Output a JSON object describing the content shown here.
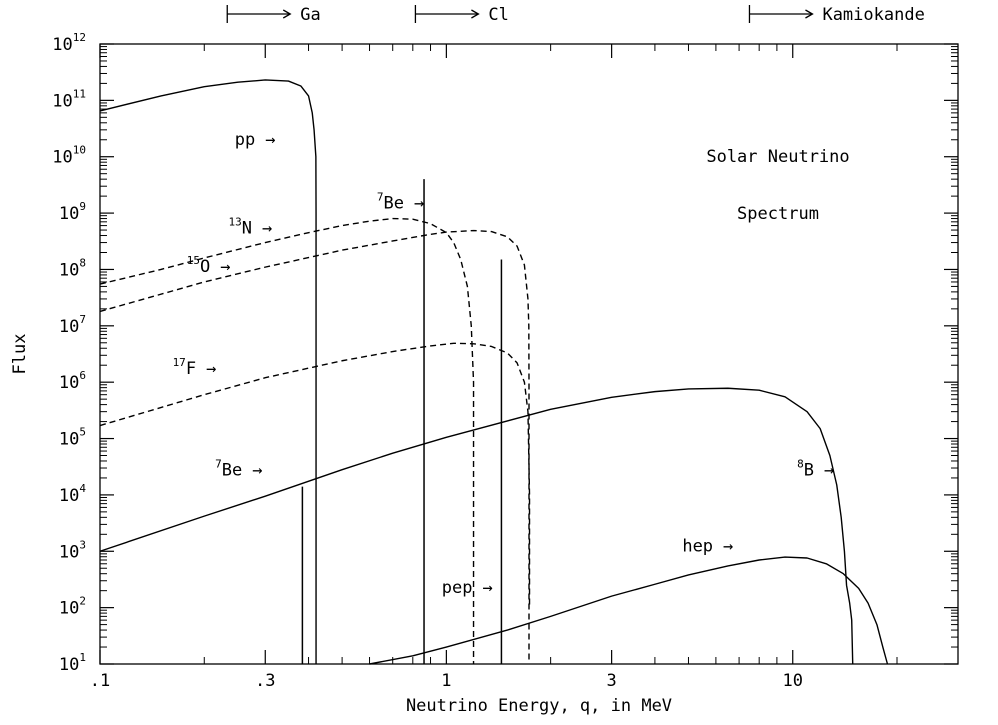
{
  "chart_data": {
    "type": "line",
    "title": "Solar Neutrino",
    "subtitle": "Spectrum",
    "xlabel": "Neutrino Energy, q, in MeV",
    "ylabel": "Flux",
    "xscale": "log",
    "yscale": "log",
    "xlim": [
      0.1,
      30
    ],
    "ylim": [
      10,
      1000000000000
    ],
    "x_ticks": [
      {
        "value": 0.1,
        "label": ".1"
      },
      {
        "value": 0.3,
        "label": ".3"
      },
      {
        "value": 1,
        "label": "1"
      },
      {
        "value": 3,
        "label": "3"
      },
      {
        "value": 10,
        "label": "10"
      }
    ],
    "y_ticks": [
      {
        "exp": 1,
        "base": "10",
        "sup": "1"
      },
      {
        "exp": 2,
        "base": "10",
        "sup": "2"
      },
      {
        "exp": 3,
        "base": "10",
        "sup": "3"
      },
      {
        "exp": 4,
        "base": "10",
        "sup": "4"
      },
      {
        "exp": 5,
        "base": "10",
        "sup": "5"
      },
      {
        "exp": 6,
        "base": "10",
        "sup": "6"
      },
      {
        "exp": 7,
        "base": "10",
        "sup": "7"
      },
      {
        "exp": 8,
        "base": "10",
        "sup": "8"
      },
      {
        "exp": 9,
        "base": "10",
        "sup": "9"
      },
      {
        "exp": 10,
        "base": "10",
        "sup": "10"
      },
      {
        "exp": 11,
        "base": "10",
        "sup": "11"
      },
      {
        "exp": 12,
        "base": "10",
        "sup": "12"
      }
    ],
    "thresholds": [
      {
        "label": "Ga",
        "x": 0.233
      },
      {
        "label": "Cl",
        "x": 0.814
      },
      {
        "label": "Kamiokande",
        "x": 7.5
      }
    ],
    "series": [
      {
        "label": "pp",
        "style": "solid",
        "points": [
          [
            0.1,
            65000000000.0
          ],
          [
            0.15,
            120000000000.0
          ],
          [
            0.2,
            175000000000.0
          ],
          [
            0.25,
            210000000000.0
          ],
          [
            0.3,
            230000000000.0
          ],
          [
            0.35,
            220000000000.0
          ],
          [
            0.38,
            180000000000.0
          ],
          [
            0.4,
            120000000000.0
          ],
          [
            0.41,
            60000000000.0
          ],
          [
            0.415,
            30000000000.0
          ],
          [
            0.42,
            10000000000.0
          ],
          [
            0.4205,
            1000000000.0
          ],
          [
            0.4205,
            10000000.0
          ],
          [
            0.4205,
            10
          ]
        ]
      },
      {
        "label": "13N",
        "style": "dashed",
        "points": [
          [
            0.1,
            55000000.0
          ],
          [
            0.15,
            100000000.0
          ],
          [
            0.2,
            160000000.0
          ],
          [
            0.3,
            300000000.0
          ],
          [
            0.4,
            450000000.0
          ],
          [
            0.5,
            600000000.0
          ],
          [
            0.6,
            720000000.0
          ],
          [
            0.7,
            800000000.0
          ],
          [
            0.8,
            780000000.0
          ],
          [
            0.9,
            650000000.0
          ],
          [
            1.0,
            450000000.0
          ],
          [
            1.05,
            300000000.0
          ],
          [
            1.1,
            150000000.0
          ],
          [
            1.15,
            50000000.0
          ],
          [
            1.18,
            10000000.0
          ],
          [
            1.198,
            1000000.0
          ],
          [
            1.198,
            10
          ]
        ]
      },
      {
        "label": "15O",
        "style": "dashed",
        "points": [
          [
            0.1,
            18000000.0
          ],
          [
            0.2,
            60000000.0
          ],
          [
            0.3,
            110000000.0
          ],
          [
            0.5,
            220000000.0
          ],
          [
            0.7,
            320000000.0
          ],
          [
            0.9,
            420000000.0
          ],
          [
            1.0,
            460000000.0
          ],
          [
            1.2,
            490000000.0
          ],
          [
            1.35,
            470000000.0
          ],
          [
            1.5,
            380000000.0
          ],
          [
            1.6,
            260000000.0
          ],
          [
            1.68,
            120000000.0
          ],
          [
            1.72,
            30000000.0
          ],
          [
            1.73,
            10000000.0
          ],
          [
            1.732,
            1000000.0
          ],
          [
            1.732,
            10
          ]
        ]
      },
      {
        "label": "17F",
        "style": "dashed",
        "points": [
          [
            0.1,
            170000.0
          ],
          [
            0.2,
            600000.0
          ],
          [
            0.3,
            1200000.0
          ],
          [
            0.5,
            2400000.0
          ],
          [
            0.7,
            3500000.0
          ],
          [
            0.9,
            4400000.0
          ],
          [
            1.05,
            4900000.0
          ],
          [
            1.2,
            4800000.0
          ],
          [
            1.35,
            4300000.0
          ],
          [
            1.5,
            3300000.0
          ],
          [
            1.6,
            2200000.0
          ],
          [
            1.68,
            1000000.0
          ],
          [
            1.72,
            300000.0
          ],
          [
            1.738,
            10000.0
          ],
          [
            1.738,
            100
          ]
        ]
      },
      {
        "label": "8B",
        "style": "solid",
        "points": [
          [
            0.1,
            1000
          ],
          [
            0.2,
            4200
          ],
          [
            0.3,
            9500
          ],
          [
            0.5,
            28000.0
          ],
          [
            0.7,
            55000.0
          ],
          [
            1.0,
            105000.0
          ],
          [
            2.0,
            330000.0
          ],
          [
            3.0,
            540000.0
          ],
          [
            4.0,
            680000.0
          ],
          [
            5.0,
            760000.0
          ],
          [
            6.5,
            780000.0
          ],
          [
            8.0,
            720000.0
          ],
          [
            9.5,
            550000.0
          ],
          [
            11.0,
            300000.0
          ],
          [
            12.0,
            150000.0
          ],
          [
            12.8,
            50000.0
          ],
          [
            13.4,
            15000.0
          ],
          [
            13.8,
            4000
          ],
          [
            14.1,
            1000
          ],
          [
            14.3,
            250
          ],
          [
            14.6,
            120
          ],
          [
            14.8,
            60
          ],
          [
            14.9,
            10
          ]
        ]
      },
      {
        "label": "hep",
        "style": "solid",
        "points": [
          [
            0.6,
            10
          ],
          [
            0.8,
            14
          ],
          [
            1.0,
            20
          ],
          [
            1.5,
            40
          ],
          [
            2.0,
            70
          ],
          [
            3.0,
            160
          ],
          [
            4.0,
            260
          ],
          [
            5.0,
            380
          ],
          [
            6.5,
            550
          ],
          [
            8.0,
            700
          ],
          [
            9.5,
            790
          ],
          [
            11.0,
            760
          ],
          [
            12.5,
            600
          ],
          [
            14.0,
            400
          ],
          [
            15.5,
            220
          ],
          [
            16.5,
            120
          ],
          [
            17.5,
            50
          ],
          [
            18.2,
            20
          ],
          [
            18.77,
            10
          ]
        ]
      }
    ],
    "lines": [
      {
        "label": "7Be",
        "x": 0.384,
        "y": 14000.0
      },
      {
        "label": "7Be",
        "x": 0.862,
        "y": 4000000000.0
      },
      {
        "label": "pep",
        "x": 1.442,
        "y": 150000000.0
      }
    ],
    "annotations": [
      {
        "main": "pp",
        "arrow": "→",
        "x": 0.245,
        "y": 16000000000.0
      },
      {
        "sup": "7",
        "main": "Be",
        "arrow": "→",
        "x": 0.63,
        "y": 1200000000.0
      },
      {
        "sup": "13",
        "main": "N",
        "arrow": "→",
        "x": 0.235,
        "y": 430000000.0
      },
      {
        "sup": "15",
        "main": "O",
        "arrow": "→",
        "x": 0.178,
        "y": 90000000.0
      },
      {
        "sup": "17",
        "main": "F",
        "arrow": "→",
        "x": 0.162,
        "y": 1400000.0
      },
      {
        "sup": "7",
        "main": "Be",
        "arrow": "→",
        "x": 0.215,
        "y": 22000.0
      },
      {
        "sup": "8",
        "main": "B",
        "arrow": "→",
        "x": 10.3,
        "y": 22000.0
      },
      {
        "main": "hep",
        "arrow": "→",
        "x": 4.8,
        "y": 1000
      },
      {
        "main": "pep",
        "arrow": "→",
        "x": 0.97,
        "y": 180
      }
    ]
  }
}
